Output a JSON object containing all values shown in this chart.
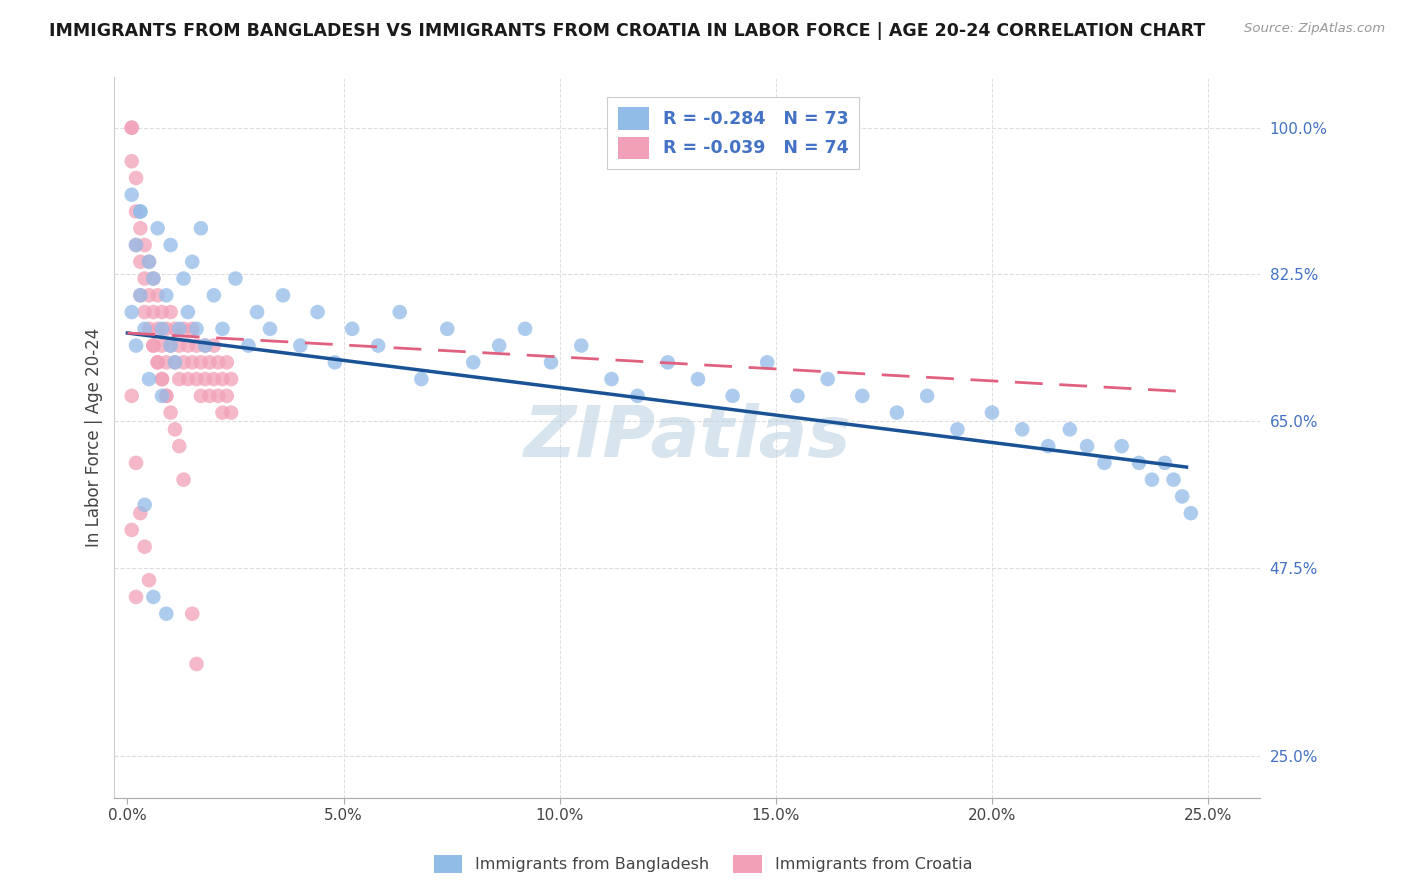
{
  "title": "IMMIGRANTS FROM BANGLADESH VS IMMIGRANTS FROM CROATIA IN LABOR FORCE | AGE 20-24 CORRELATION CHART",
  "source": "Source: ZipAtlas.com",
  "ylabel": "In Labor Force | Age 20-24",
  "xlabel_vals": [
    0.0,
    0.05,
    0.1,
    0.15,
    0.2,
    0.25
  ],
  "ylabel_vals": [
    0.25,
    0.475,
    0.65,
    0.825,
    1.0
  ],
  "ylabel_labels": [
    "25.0%",
    "47.5%",
    "65.0%",
    "82.5%",
    "100.0%"
  ],
  "ylim": [
    0.2,
    1.06
  ],
  "xlim": [
    -0.003,
    0.262
  ],
  "r_bangladesh": -0.284,
  "n_bangladesh": 73,
  "r_croatia": -0.039,
  "n_croatia": 74,
  "color_bangladesh": "#92bce8",
  "color_croatia": "#f2a0b8",
  "color_trendline_bangladesh": "#1a5296",
  "color_trendline_croatia": "#e06080",
  "legend_label_bangladesh": "Immigrants from Bangladesh",
  "legend_label_croatia": "Immigrants from Croatia",
  "watermark": "ZIPatlas",
  "bang_trendline_x0": 0.0,
  "bang_trendline_y0": 0.755,
  "bang_trendline_x1": 0.245,
  "bang_trendline_y1": 0.595,
  "cro_trendline_x0": 0.0,
  "cro_trendline_y0": 0.755,
  "cro_trendline_x1": 0.245,
  "cro_trendline_y1": 0.685,
  "bangladesh_x": [
    0.001,
    0.001,
    0.002,
    0.002,
    0.003,
    0.003,
    0.004,
    0.005,
    0.005,
    0.006,
    0.007,
    0.008,
    0.008,
    0.009,
    0.01,
    0.01,
    0.011,
    0.012,
    0.013,
    0.014,
    0.015,
    0.016,
    0.017,
    0.018,
    0.02,
    0.022,
    0.025,
    0.028,
    0.03,
    0.033,
    0.036,
    0.04,
    0.044,
    0.048,
    0.052,
    0.058,
    0.063,
    0.068,
    0.074,
    0.08,
    0.086,
    0.092,
    0.098,
    0.105,
    0.112,
    0.118,
    0.125,
    0.132,
    0.14,
    0.148,
    0.155,
    0.162,
    0.17,
    0.178,
    0.185,
    0.192,
    0.2,
    0.207,
    0.213,
    0.218,
    0.222,
    0.226,
    0.23,
    0.234,
    0.237,
    0.24,
    0.242,
    0.244,
    0.246,
    0.003,
    0.004,
    0.006,
    0.009
  ],
  "bangladesh_y": [
    0.78,
    0.92,
    0.74,
    0.86,
    0.8,
    0.9,
    0.76,
    0.84,
    0.7,
    0.82,
    0.88,
    0.76,
    0.68,
    0.8,
    0.74,
    0.86,
    0.72,
    0.76,
    0.82,
    0.78,
    0.84,
    0.76,
    0.88,
    0.74,
    0.8,
    0.76,
    0.82,
    0.74,
    0.78,
    0.76,
    0.8,
    0.74,
    0.78,
    0.72,
    0.76,
    0.74,
    0.78,
    0.7,
    0.76,
    0.72,
    0.74,
    0.76,
    0.72,
    0.74,
    0.7,
    0.68,
    0.72,
    0.7,
    0.68,
    0.72,
    0.68,
    0.7,
    0.68,
    0.66,
    0.68,
    0.64,
    0.66,
    0.64,
    0.62,
    0.64,
    0.62,
    0.6,
    0.62,
    0.6,
    0.58,
    0.6,
    0.58,
    0.56,
    0.54,
    0.9,
    0.55,
    0.44,
    0.42
  ],
  "croatia_x": [
    0.001,
    0.001,
    0.001,
    0.002,
    0.002,
    0.002,
    0.003,
    0.003,
    0.003,
    0.004,
    0.004,
    0.004,
    0.005,
    0.005,
    0.005,
    0.006,
    0.006,
    0.006,
    0.007,
    0.007,
    0.007,
    0.008,
    0.008,
    0.008,
    0.009,
    0.009,
    0.009,
    0.01,
    0.01,
    0.011,
    0.011,
    0.012,
    0.012,
    0.013,
    0.013,
    0.014,
    0.014,
    0.015,
    0.015,
    0.016,
    0.016,
    0.017,
    0.017,
    0.018,
    0.018,
    0.019,
    0.019,
    0.02,
    0.02,
    0.021,
    0.021,
    0.022,
    0.022,
    0.023,
    0.023,
    0.024,
    0.024,
    0.001,
    0.002,
    0.003,
    0.004,
    0.005,
    0.006,
    0.007,
    0.008,
    0.009,
    0.01,
    0.011,
    0.012,
    0.013,
    0.001,
    0.002,
    0.015,
    0.016
  ],
  "croatia_y": [
    1.0,
    1.0,
    0.96,
    0.94,
    0.9,
    0.86,
    0.88,
    0.84,
    0.8,
    0.86,
    0.82,
    0.78,
    0.84,
    0.8,
    0.76,
    0.82,
    0.78,
    0.74,
    0.8,
    0.76,
    0.72,
    0.78,
    0.74,
    0.7,
    0.76,
    0.72,
    0.68,
    0.78,
    0.74,
    0.76,
    0.72,
    0.74,
    0.7,
    0.76,
    0.72,
    0.74,
    0.7,
    0.76,
    0.72,
    0.74,
    0.7,
    0.72,
    0.68,
    0.74,
    0.7,
    0.72,
    0.68,
    0.74,
    0.7,
    0.72,
    0.68,
    0.7,
    0.66,
    0.72,
    0.68,
    0.7,
    0.66,
    0.68,
    0.6,
    0.54,
    0.5,
    0.46,
    0.74,
    0.72,
    0.7,
    0.68,
    0.66,
    0.64,
    0.62,
    0.58,
    0.52,
    0.44,
    0.42,
    0.36
  ]
}
